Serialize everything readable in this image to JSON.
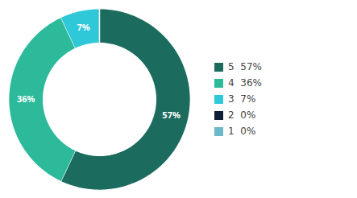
{
  "chart_data": {
    "type": "donut",
    "categories": [
      "5  57%",
      "4  36%",
      "3  7%",
      "2  0%",
      "1  0%"
    ],
    "values": [
      57,
      36,
      7,
      0.001,
      0.001
    ],
    "colors": [
      "#1b6b5e",
      "#2dba9a",
      "#2ec8d8",
      "#0d1f35",
      "#6ab8c8"
    ],
    "value_labels": [
      "57%",
      "36%",
      "7%",
      null,
      null
    ],
    "data_labels": true,
    "legend": "right"
  }
}
